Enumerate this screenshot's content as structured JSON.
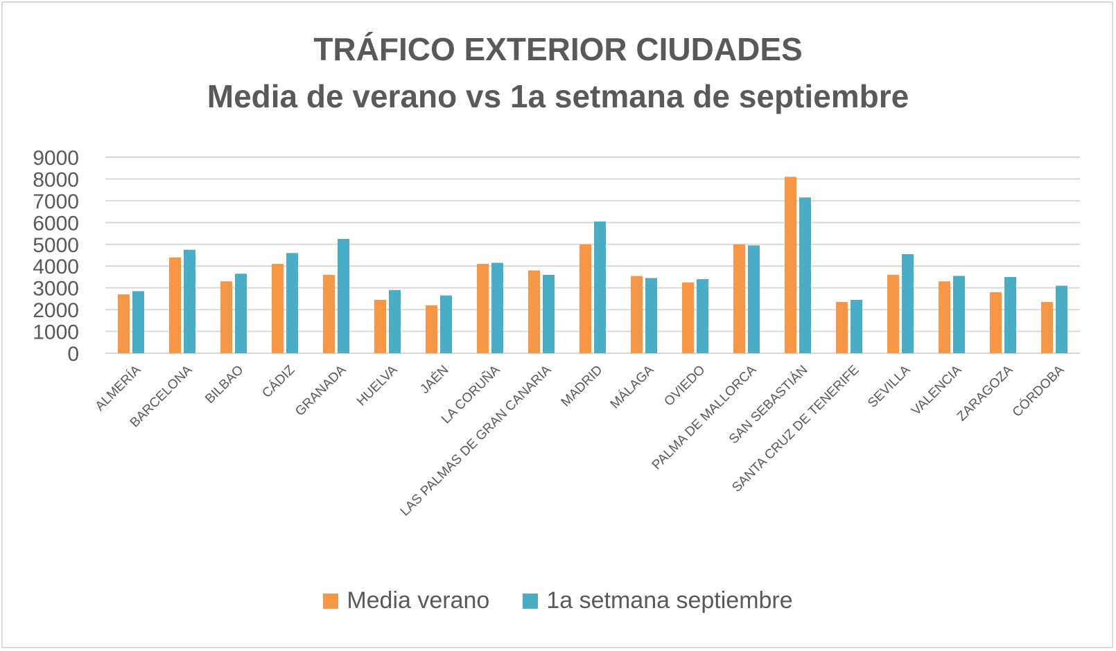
{
  "chart_data": {
    "type": "bar",
    "title": "TRÁFICO EXTERIOR CIUDADES",
    "subtitle": "Media de verano vs 1a setmana de septiembre",
    "xlabel": "",
    "ylabel": "",
    "ylim": [
      0,
      9000
    ],
    "yticks": [
      "0",
      "1000",
      "2000",
      "3000",
      "4000",
      "5000",
      "6000",
      "7000",
      "8000",
      "9000"
    ],
    "grid": true,
    "legend_position": "bottom",
    "categories": [
      "ALMERÍA",
      "BARCELONA",
      "BILBAO",
      "CÁDIZ",
      "GRANADA",
      "HUELVA",
      "JAÉN",
      "LA CORUÑA",
      "LAS PALMAS DE GRAN CANARIA",
      "MADRID",
      "MÁLAGA",
      "OVIEDO",
      "PALMA DE MALLORCA",
      "SAN SEBASTIÁN",
      "SANTA CRUZ DE TENERIFE",
      "SEVILLA",
      "VALENCIA",
      "ZARAGOZA",
      "CÓRDOBA"
    ],
    "series": [
      {
        "name": "Media verano",
        "color": "#f79646",
        "values": [
          2700,
          4400,
          3300,
          4100,
          3600,
          2450,
          2200,
          4100,
          3800,
          5000,
          3550,
          3250,
          5000,
          8100,
          2350,
          3600,
          3300,
          2800,
          2350
        ]
      },
      {
        "name": "1a setmana septiembre",
        "color": "#4bacc6",
        "values": [
          2850,
          4750,
          3650,
          4600,
          5250,
          2900,
          2650,
          4150,
          3600,
          6050,
          3450,
          3400,
          4950,
          7150,
          2450,
          4550,
          3550,
          3500,
          3100
        ]
      }
    ]
  }
}
